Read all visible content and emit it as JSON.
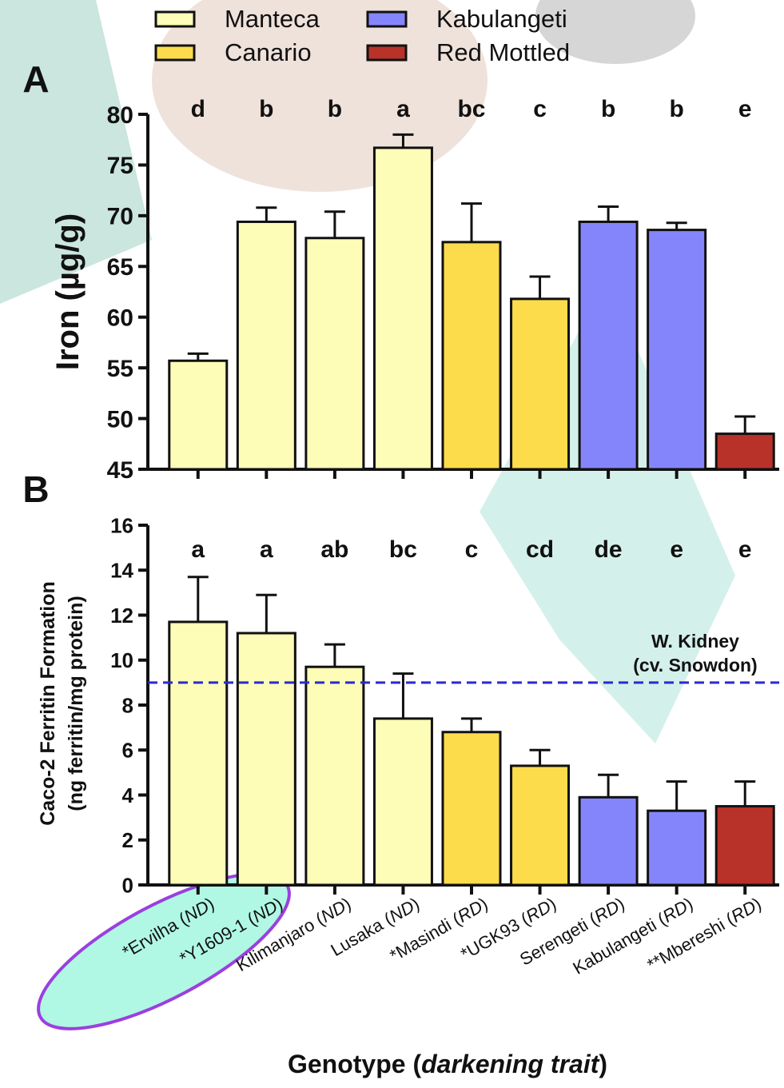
{
  "chart_data": [
    {
      "type": "bar",
      "panel": "A",
      "y_label": "Iron (µg/g)",
      "legend": [
        {
          "name": "Manteca",
          "color": "#fdfdb8"
        },
        {
          "name": "Canario",
          "color": "#fddc4c"
        },
        {
          "name": "Kabulangeti",
          "color": "#8585fb"
        },
        {
          "name": "Red Mottled",
          "color": "#b8322a"
        }
      ],
      "values": [
        55.7,
        69.4,
        67.8,
        76.7,
        67.4,
        61.8,
        69.4,
        68.6,
        48.5
      ],
      "errors": [
        0.7,
        1.4,
        2.6,
        1.3,
        3.8,
        2.2,
        1.5,
        0.7,
        1.7
      ],
      "letters": [
        "d",
        "b",
        "b",
        "a",
        "bc",
        "c",
        "b",
        "b",
        "e"
      ],
      "colors": [
        "#fdfdb8",
        "#fdfdb8",
        "#fdfdb8",
        "#fdfdb8",
        "#fddc4c",
        "#fddc4c",
        "#8585fb",
        "#8585fb",
        "#b8322a"
      ],
      "ylim": [
        45,
        80
      ],
      "yticks": [
        45,
        50,
        55,
        60,
        65,
        70,
        75,
        80
      ]
    },
    {
      "type": "bar",
      "panel": "B",
      "y_label": [
        "Caco-2 Ferritin Formation",
        "(ng ferritin/mg protein)"
      ],
      "categories": [
        [
          "*Ervilha (",
          "ND",
          ")"
        ],
        [
          "*Y1609-1 (",
          "ND",
          ")"
        ],
        [
          "Kilimanjaro (",
          "ND",
          ")"
        ],
        [
          "Lusaka (",
          "ND",
          ")"
        ],
        [
          "*Masindi (",
          "RD",
          ")"
        ],
        [
          "*UGK93 (",
          "RD",
          ")"
        ],
        [
          "Serengeti (",
          "RD",
          ")"
        ],
        [
          "Kabulangeti (",
          "RD",
          ")"
        ],
        [
          "**Mbereshi (",
          "RD",
          ")"
        ]
      ],
      "values": [
        11.7,
        11.2,
        9.7,
        7.4,
        6.8,
        5.3,
        3.9,
        3.3,
        3.5
      ],
      "errors": [
        2.0,
        1.7,
        1.0,
        2.0,
        0.6,
        0.7,
        1.0,
        1.3,
        1.1
      ],
      "letters": [
        "a",
        "a",
        "ab",
        "bc",
        "c",
        "cd",
        "de",
        "e",
        "e"
      ],
      "colors": [
        "#fdfdb8",
        "#fdfdb8",
        "#fdfdb8",
        "#fdfdb8",
        "#fddc4c",
        "#fddc4c",
        "#8585fb",
        "#8585fb",
        "#b8322a"
      ],
      "reference": {
        "value": 9,
        "label": [
          "W. Kidney",
          "(cv. Snowdon)"
        ],
        "color": "#2a2ad0"
      },
      "x_label": [
        "Genotype (",
        "darkening trait",
        ")"
      ],
      "ylim": [
        0,
        16
      ],
      "yticks": [
        0,
        2,
        4,
        6,
        8,
        10,
        12,
        14,
        16
      ]
    }
  ]
}
